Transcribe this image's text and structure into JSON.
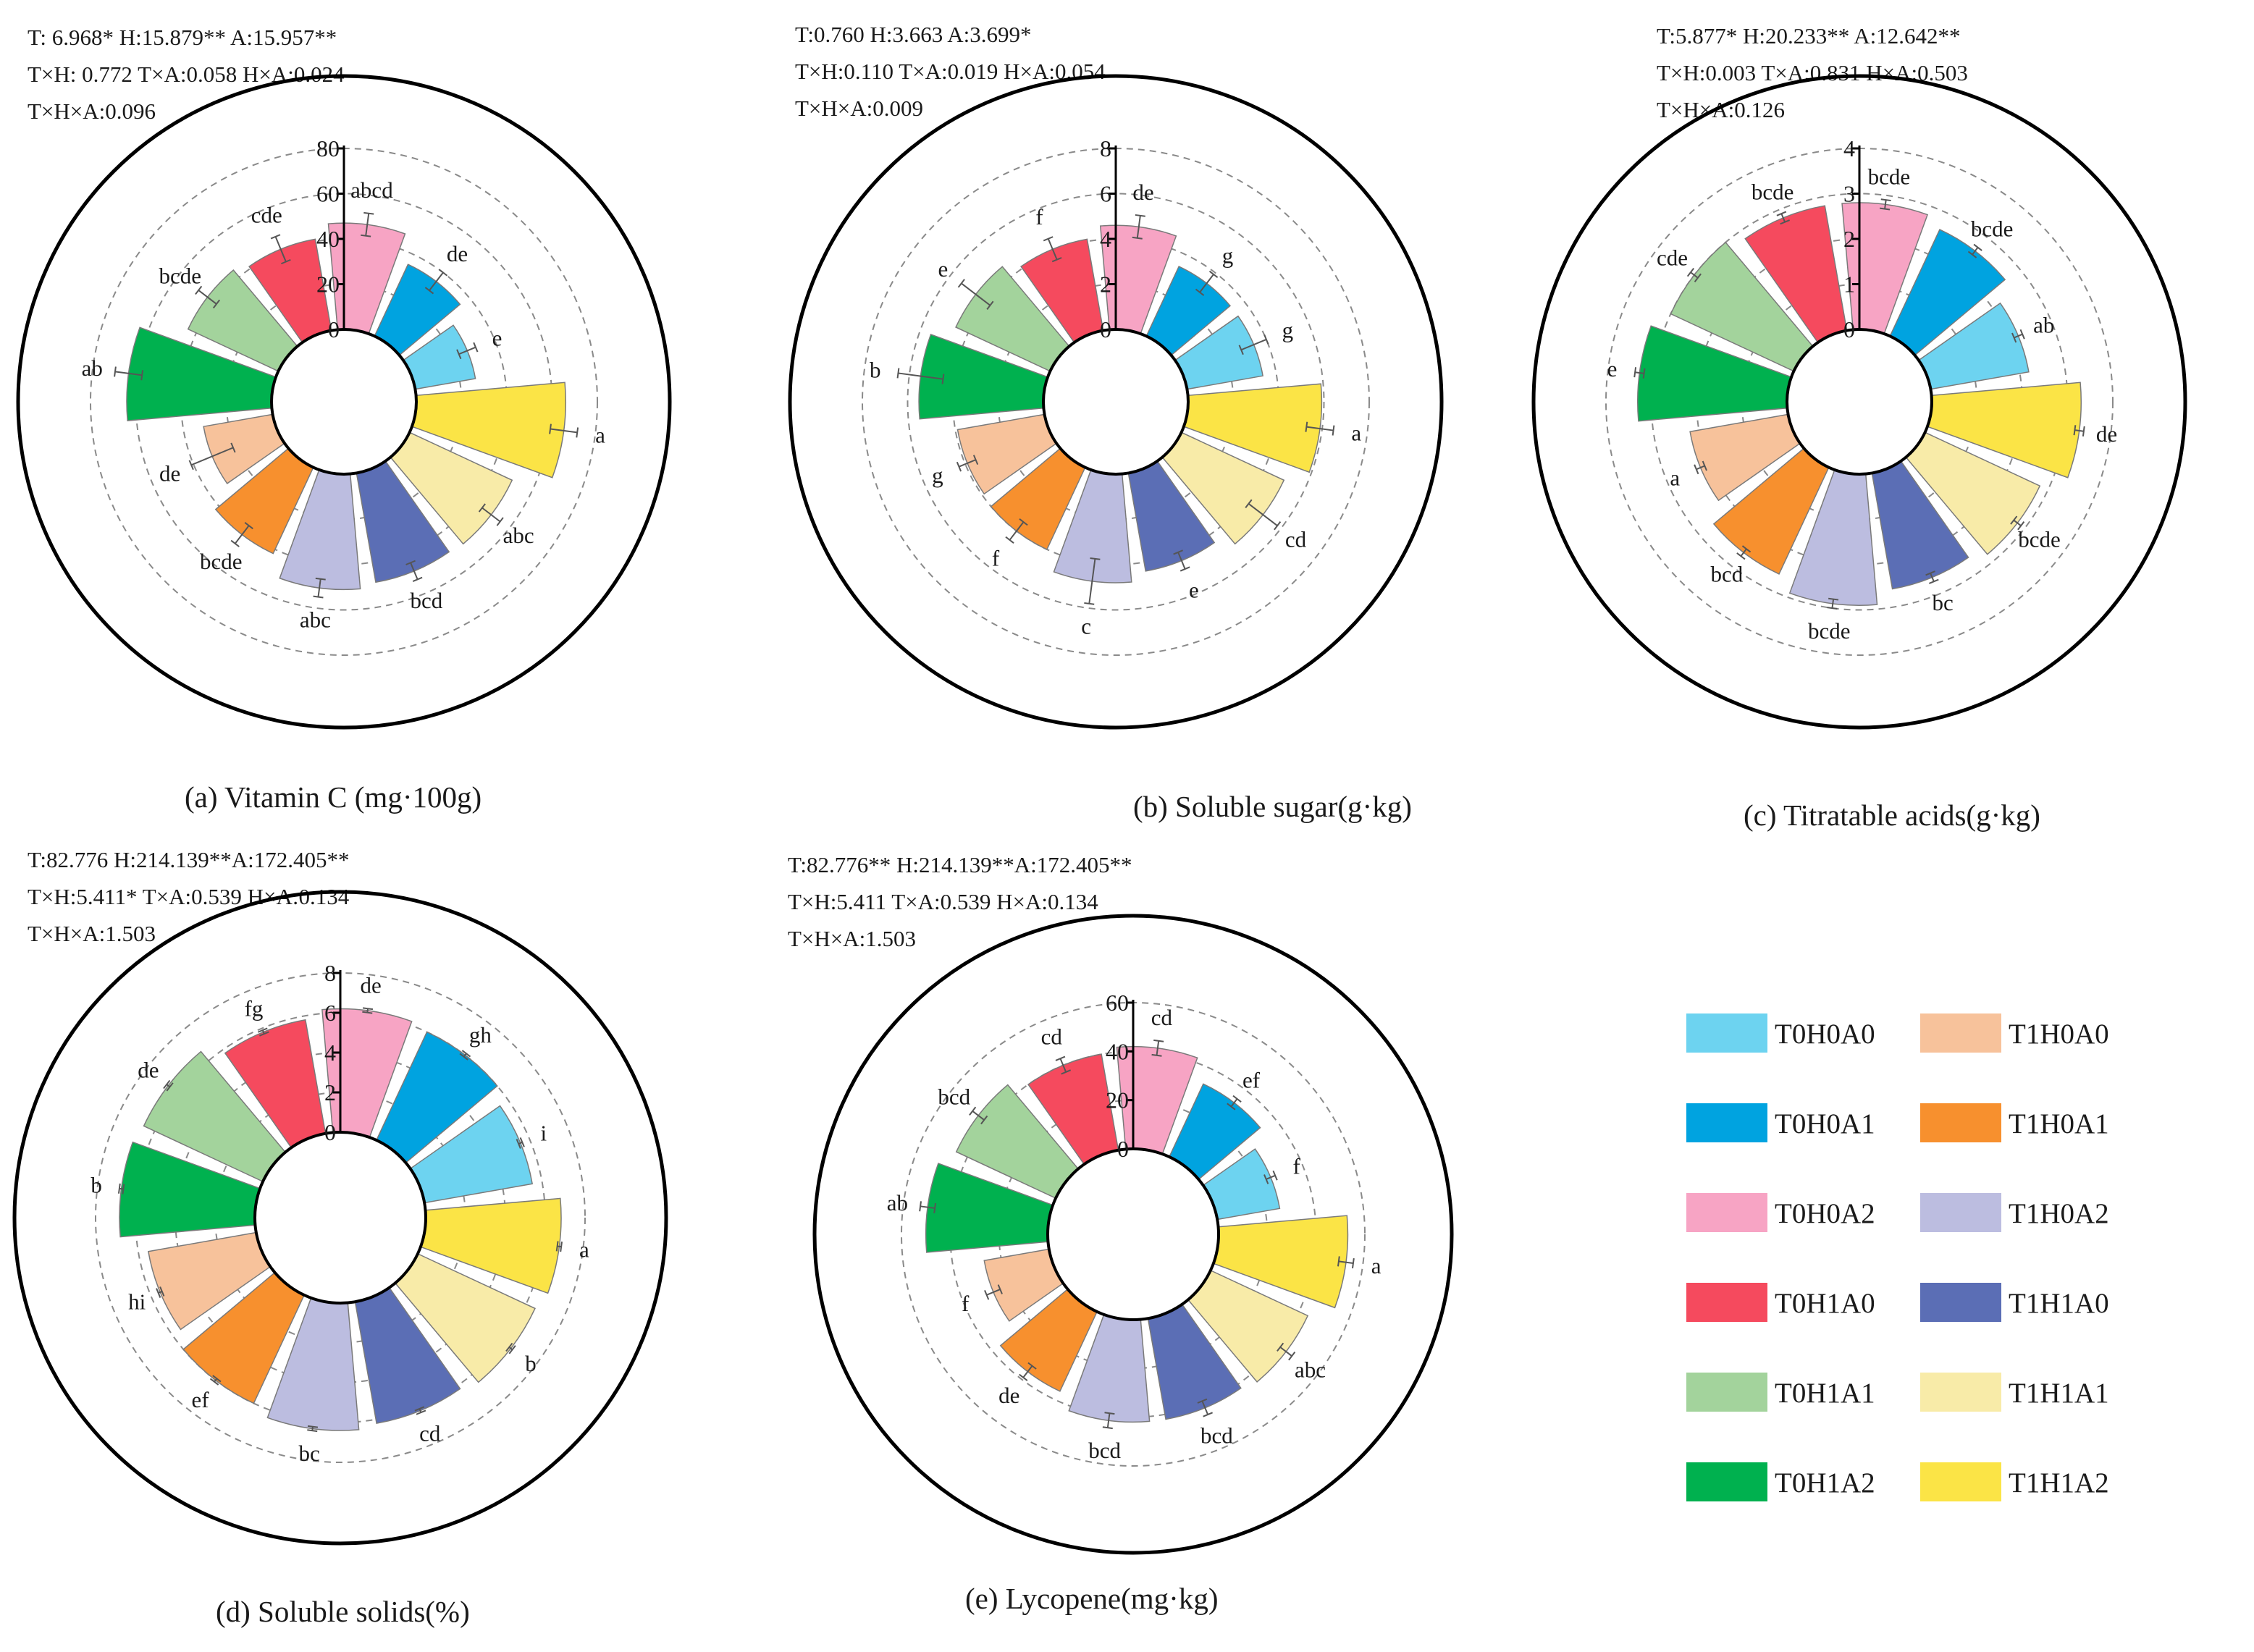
{
  "groups": [
    "T0H0A0",
    "T0H0A1",
    "T0H0A2",
    "T0H1A0",
    "T0H1A1",
    "T0H1A2",
    "T1H0A0",
    "T1H0A1",
    "T1H0A2",
    "T1H1A0",
    "T1H1A1",
    "T1H1A2"
  ],
  "colors": {
    "T0H0A0": "#6dd3f0",
    "T0H0A1": "#00a3e0",
    "T0H0A2": "#f7a4c4",
    "T0H1A0": "#f54a5e",
    "T0H1A1": "#a3d39c",
    "T0H1A2": "#00b14f",
    "T1H0A0": "#f7c29b",
    "T1H0A1": "#f7902e",
    "T1H0A2": "#bcbde0",
    "T1H1A0": "#5b6eb5",
    "T1H1A1": "#f8eba8",
    "T1H1A2": "#fbe446"
  },
  "legend": {
    "items": [
      "T0H0A0",
      "T1H0A0",
      "T0H0A1",
      "T1H0A1",
      "T0H0A2",
      "T1H0A2",
      "T0H1A0",
      "T1H1A0",
      "T0H1A1",
      "T1H1A1",
      "T0H1A2",
      "T1H1A2"
    ]
  },
  "chart_data": [
    {
      "type": "bar",
      "polar": true,
      "title": "(a) Vitamin C (mg·100g)",
      "stats": [
        "T: 6.968* H:15.879** A:15.957**",
        "T×H: 0.772 T×A:0.058 H×A:0.024",
        "T×H×A:0.096"
      ],
      "rlim": [
        0,
        80
      ],
      "ticks": [
        0,
        20,
        40,
        60,
        80
      ],
      "categories": [
        "T0H0A0",
        "T0H0A1",
        "T0H0A2",
        "T0H1A0",
        "T0H1A1",
        "T0H1A2",
        "T1H0A0",
        "T1H0A1",
        "T1H0A2",
        "T1H1A0",
        "T1H1A1",
        "T1H1A2"
      ],
      "values": [
        27,
        35,
        47,
        41,
        44,
        64,
        31,
        42,
        51,
        49,
        50,
        66
      ],
      "errors": [
        4,
        5,
        5,
        6,
        5,
        6,
        10,
        5,
        4,
        4,
        5,
        6
      ],
      "letters": [
        "e",
        "de",
        "abcd",
        "cde",
        "bcde",
        "ab",
        "de",
        "bcde",
        "abc",
        "bcd",
        "abc",
        "a"
      ]
    },
    {
      "type": "bar",
      "polar": true,
      "title": "(b) Soluble sugar(g·kg)",
      "stats": [
        "T:0.760 H:3.663 A:3.699*",
        "T×H:0.110  T×A:0.019 H×A:0.054",
        "T×H×A:0.009"
      ],
      "rlim": [
        0,
        8
      ],
      "ticks": [
        0,
        2,
        4,
        6,
        8
      ],
      "categories": [
        "T0H0A0",
        "T0H0A1",
        "T0H0A2",
        "T0H1A0",
        "T0H1A1",
        "T0H1A2",
        "T1H0A0",
        "T1H0A1",
        "T1H0A2",
        "T1H1A0",
        "T1H1A1",
        "T1H1A2"
      ],
      "values": [
        3.4,
        3.4,
        4.6,
        4.1,
        4.6,
        5.5,
        3.9,
        4.0,
        4.8,
        4.4,
        5.0,
        5.9
      ],
      "errors": [
        0.6,
        0.5,
        0.5,
        0.5,
        0.8,
        1.0,
        0.4,
        0.5,
        1.0,
        0.4,
        0.8,
        0.6
      ],
      "letters": [
        "g",
        "g",
        "de",
        "f",
        "e",
        "b",
        "g",
        "f",
        "c",
        "e",
        "cd",
        "a"
      ]
    },
    {
      "type": "bar",
      "polar": true,
      "title": "(c) Titratable acids(g·kg)",
      "stats": [
        "T:5.877* H:20.233** A:12.642**",
        "T×H:0.003  T×A:0.831 H×A:0.503",
        "T×H×A:0.126"
      ],
      "rlim": [
        0,
        4
      ],
      "ticks": [
        0,
        1,
        2,
        3,
        4
      ],
      "categories": [
        "T0H0A0",
        "T0H0A1",
        "T0H0A2",
        "T0H1A0",
        "T0H1A1",
        "T0H1A2",
        "T1H0A0",
        "T1H0A1",
        "T1H0A2",
        "T1H1A0",
        "T1H1A1",
        "T1H1A2"
      ],
      "values": [
        2.2,
        2.6,
        2.8,
        2.8,
        3.0,
        3.3,
        2.2,
        2.6,
        2.9,
        2.6,
        2.8,
        3.3
      ],
      "errors": [
        0.1,
        0.1,
        0.1,
        0.1,
        0.1,
        0.1,
        0.1,
        0.1,
        0.1,
        0.1,
        0.1,
        0.1
      ],
      "letters": [
        "ab",
        "bcde",
        "bcde",
        "bcde",
        "cde",
        "e",
        "a",
        "bcd",
        "bcde",
        "bc",
        "bcde",
        "de"
      ]
    },
    {
      "type": "bar",
      "polar": true,
      "title": "(d) Soluble solids(%)",
      "stats": [
        "T:82.776 H:214.139**A:172.405**",
        "T×H:5.411*  T×A:0.539 H×A:0.134",
        "T×H×A:1.503"
      ],
      "rlim": [
        0,
        8
      ],
      "ticks": [
        0,
        2,
        4,
        6,
        8
      ],
      "categories": [
        "T0H0A0",
        "T0H0A1",
        "T0H0A2",
        "T0H1A0",
        "T0H1A1",
        "T0H1A2",
        "T1H0A0",
        "T1H0A1",
        "T1H0A2",
        "T1H1A0",
        "T1H1A1",
        "T1H1A2"
      ],
      "values": [
        5.5,
        6.0,
        6.2,
        5.8,
        6.6,
        6.8,
        5.5,
        6.0,
        6.4,
        6.2,
        6.5,
        6.8
      ],
      "errors": [
        0.1,
        0.1,
        0.1,
        0.1,
        0.1,
        0.1,
        0.1,
        0.1,
        0.1,
        0.1,
        0.1,
        0.1
      ],
      "letters": [
        "i",
        "gh",
        "de",
        "fg",
        "de",
        "b",
        "hi",
        "ef",
        "bc",
        "cd",
        "b",
        "a"
      ]
    },
    {
      "type": "bar",
      "polar": true,
      "title": "(e) Lycopene(mg·kg)",
      "stats": [
        "T:82.776** H:214.139**A:172.405**",
        "T×H:5.411  T×A:0.539 H×A:0.134",
        "T×H×A:1.503"
      ],
      "rlim": [
        0,
        60
      ],
      "ticks": [
        0,
        20,
        40,
        60
      ],
      "categories": [
        "T0H0A0",
        "T0H0A1",
        "T0H0A2",
        "T0H1A0",
        "T0H1A1",
        "T0H1A2",
        "T1H0A0",
        "T1H0A1",
        "T1H0A2",
        "T1H1A0",
        "T1H1A1",
        "T1H1A2"
      ],
      "values": [
        26,
        33,
        42,
        40,
        45,
        50,
        27,
        36,
        42,
        42,
        44,
        53
      ],
      "errors": [
        2,
        2,
        3,
        3,
        3,
        3,
        3,
        3,
        3,
        3,
        3,
        3
      ],
      "letters": [
        "f",
        "ef",
        "cd",
        "cd",
        "bcd",
        "ab",
        "f",
        "de",
        "bcd",
        "bcd",
        "abc",
        "a"
      ]
    }
  ]
}
